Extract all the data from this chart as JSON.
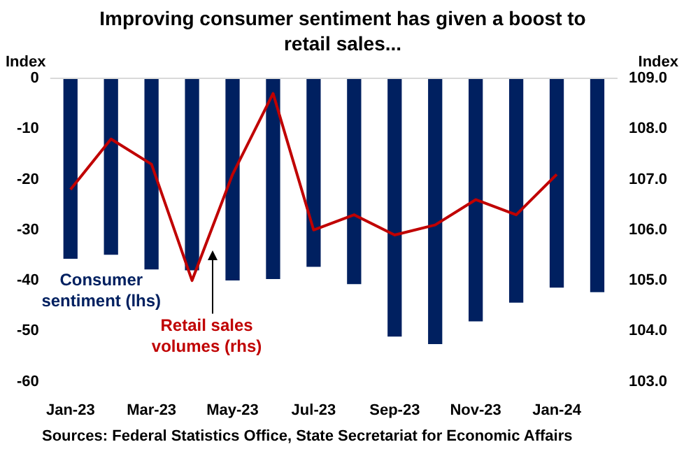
{
  "chart_data": {
    "type": "bar",
    "title": "Improving consumer sentiment has given a boost to retail sales...",
    "ylabel": "Index",
    "y2label": "Index",
    "categories": [
      "Jan-23",
      null,
      "Mar-23",
      null,
      "May-23",
      null,
      "Jul-23",
      null,
      "Sep-23",
      null,
      "Nov-23",
      null,
      "Jan-24",
      null
    ],
    "series": [
      {
        "name": "Consumer sentiment (lhs)",
        "color": "#002060",
        "values": [
          -35.7,
          -34.9,
          -37.8,
          -38,
          -40,
          -39.7,
          -37.3,
          -40.7,
          -51.1,
          -52.6,
          -48.1,
          -44.4,
          -41.4,
          -42.3
        ]
      },
      {
        "name": "Retail sales volumes (rhs)",
        "type": "line",
        "axis": "y2",
        "color": "#c00000",
        "values": [
          106.8,
          107.8,
          107.3,
          105.0,
          107.1,
          108.7,
          106.0,
          106.3,
          105.9,
          106.1,
          106.6,
          106.3,
          107.1,
          null
        ]
      }
    ],
    "ylim": [
      -60,
      0
    ],
    "yticks": [
      0,
      -10,
      -20,
      -30,
      -40,
      -50,
      -60
    ],
    "y2lim": [
      103,
      109
    ],
    "y2ticks": [
      {
        "value": 109,
        "label": "109.0"
      },
      {
        "value": 108,
        "label": "108.0"
      },
      {
        "value": 107,
        "label": "107.0"
      },
      {
        "value": 106,
        "label": "106.0"
      },
      {
        "value": 105,
        "label": "105.0"
      },
      {
        "value": 104,
        "label": "104.0"
      },
      {
        "value": 103,
        "label": "103.0"
      }
    ],
    "grid": false,
    "legend": false,
    "annotations": [
      "Sources: Federal Statistics Office, State Secretariat for Economic Affairs"
    ]
  }
}
